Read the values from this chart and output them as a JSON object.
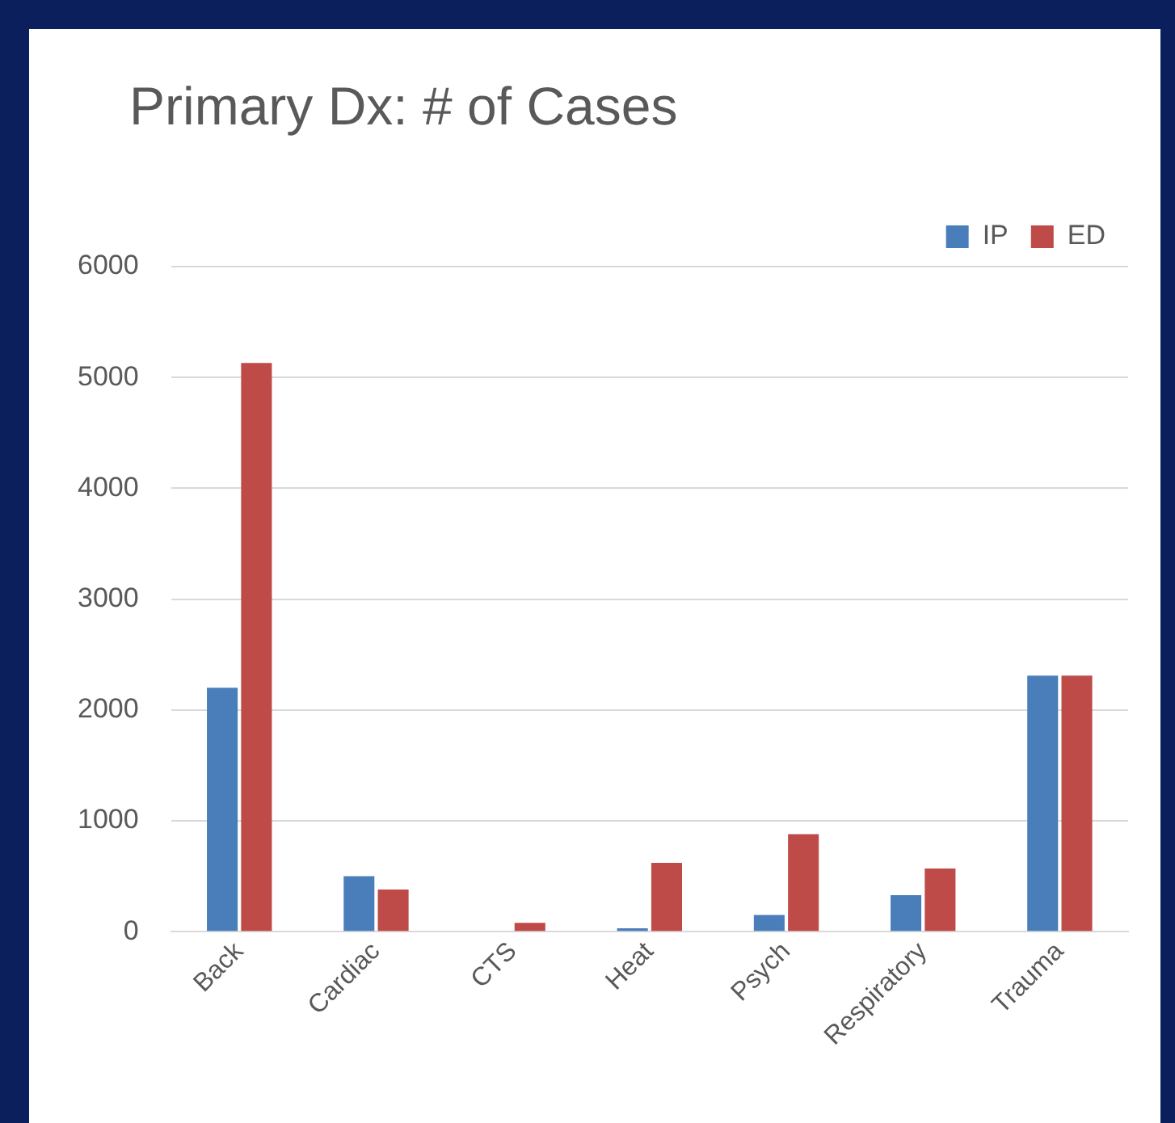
{
  "chart_data": {
    "type": "bar",
    "title": "Primary Dx: # of Cases",
    "categories": [
      "Back",
      "Cardiac",
      "CTS",
      "Heat",
      "Psych",
      "Respiratory",
      "Trauma"
    ],
    "series": [
      {
        "name": "IP",
        "color": "#4a7ebb",
        "values": [
          2200,
          500,
          0,
          30,
          150,
          330,
          2310
        ]
      },
      {
        "name": "ED",
        "color": "#be4b48",
        "values": [
          5130,
          380,
          80,
          620,
          880,
          570,
          2310
        ]
      }
    ],
    "ylim": [
      0,
      6000
    ],
    "yticks": [
      0,
      1000,
      2000,
      3000,
      4000,
      5000,
      6000
    ],
    "grid": "y",
    "legend": "top right"
  }
}
